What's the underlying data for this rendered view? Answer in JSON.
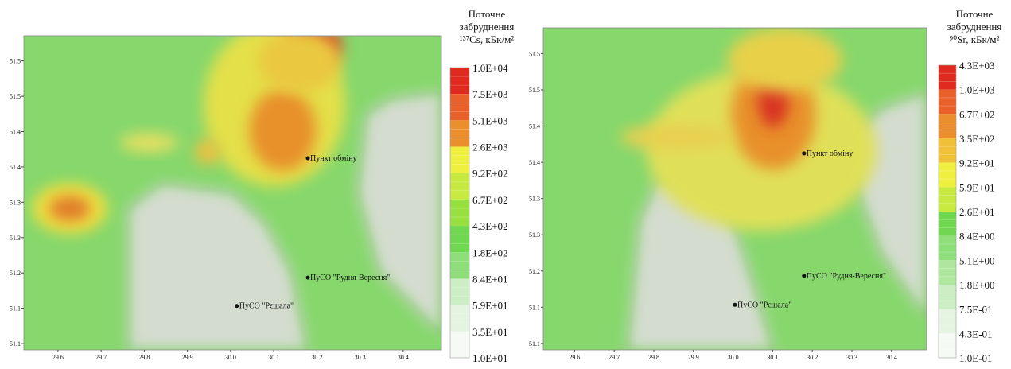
{
  "maps": [
    {
      "legend": {
        "title": [
          "Поточне",
          "забруднення",
          "¹³⁷Cs, кБк/м²"
        ],
        "labels": [
          "1.0E+04",
          "7.5E+03",
          "5.1E+03",
          "2.6E+03",
          "9.2E+02",
          "6.7E+02",
          "4.3E+02",
          "1.8E+02",
          "8.4E+01",
          "5.9E+01",
          "3.5E+01",
          "1.0E+01"
        ]
      },
      "xticks": [
        "29.6",
        "29.7",
        "29.8",
        "29.9",
        "30.0",
        "30.1",
        "30.2",
        "30.3",
        "30.4"
      ],
      "yticks": [
        "51.5",
        "51.5",
        "51.4",
        "51.4",
        "51.3",
        "51.3",
        "51.2",
        "51.1",
        "51.1"
      ],
      "places": [
        "Пункт обміну",
        "ПуСО \"Рудня-Вересня\"",
        "ПуСО \"Рєшала\""
      ]
    },
    {
      "legend": {
        "title": [
          "Поточне",
          "забруднення",
          "⁹⁰Sr, кБк/м²"
        ],
        "labels": [
          "4.3E+03",
          "1.0E+03",
          "6.7E+02",
          "3.5E+02",
          "9.2E+01",
          "5.9E+01",
          "2.6E+01",
          "8.4E+00",
          "5.1E+00",
          "1.8E+00",
          "7.5E-01",
          "4.3E-01",
          "1.0E-01"
        ]
      },
      "xticks": [
        "29.6",
        "29.7",
        "29.8",
        "29.9",
        "30.0",
        "30.1",
        "30.2",
        "30.3",
        "30.4"
      ],
      "yticks": [
        "51.5",
        "51.5",
        "51.4",
        "51.4",
        "51.3",
        "51.3",
        "51.2",
        "51.1",
        "51.1"
      ],
      "places": [
        "Пункт обміну",
        "ПуСО \"Рудня-Вересня\"",
        "ПуСО \"Рєшала\""
      ]
    }
  ]
}
